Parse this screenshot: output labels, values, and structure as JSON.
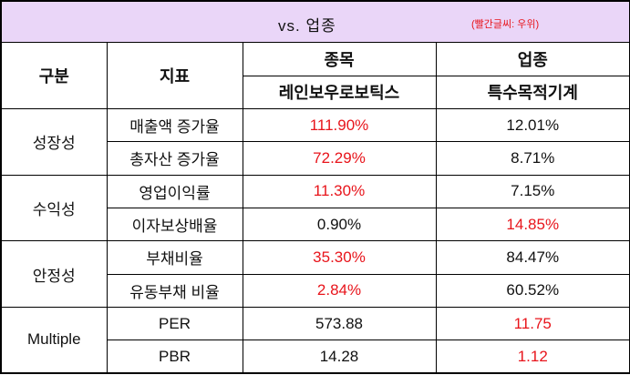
{
  "title": {
    "main": "vs. 업종",
    "note": "(빨간글씨: 우위)"
  },
  "header": {
    "category": "구분",
    "indicator": "지표",
    "stock": "종목",
    "stock_name": "레인보우로보틱스",
    "industry": "업종",
    "industry_name": "특수목적기계"
  },
  "colors": {
    "highlight": "#e8141b",
    "title_bg": "#ead6f8"
  },
  "groups": [
    {
      "name": "성장성",
      "rows": [
        {
          "indicator": "매출액 증가율",
          "stock": "111.90%",
          "industry": "12.01%",
          "better": "stock"
        },
        {
          "indicator": "총자산 증가율",
          "stock": "72.29%",
          "industry": "8.71%",
          "better": "stock"
        }
      ]
    },
    {
      "name": "수익성",
      "rows": [
        {
          "indicator": "영업이익률",
          "stock": "11.30%",
          "industry": "7.15%",
          "better": "stock"
        },
        {
          "indicator": "이자보상배율",
          "stock": "0.90%",
          "industry": "14.85%",
          "better": "industry"
        }
      ]
    },
    {
      "name": "안정성",
      "rows": [
        {
          "indicator": "부채비율",
          "stock": "35.30%",
          "industry": "84.47%",
          "better": "stock"
        },
        {
          "indicator": "유동부채 비율",
          "stock": "2.84%",
          "industry": "60.52%",
          "better": "stock"
        }
      ]
    },
    {
      "name": "Multiple",
      "rows": [
        {
          "indicator": "PER",
          "stock": "573.88",
          "industry": "11.75",
          "better": "industry"
        },
        {
          "indicator": "PBR",
          "stock": "14.28",
          "industry": "1.12",
          "better": "industry"
        }
      ]
    }
  ]
}
